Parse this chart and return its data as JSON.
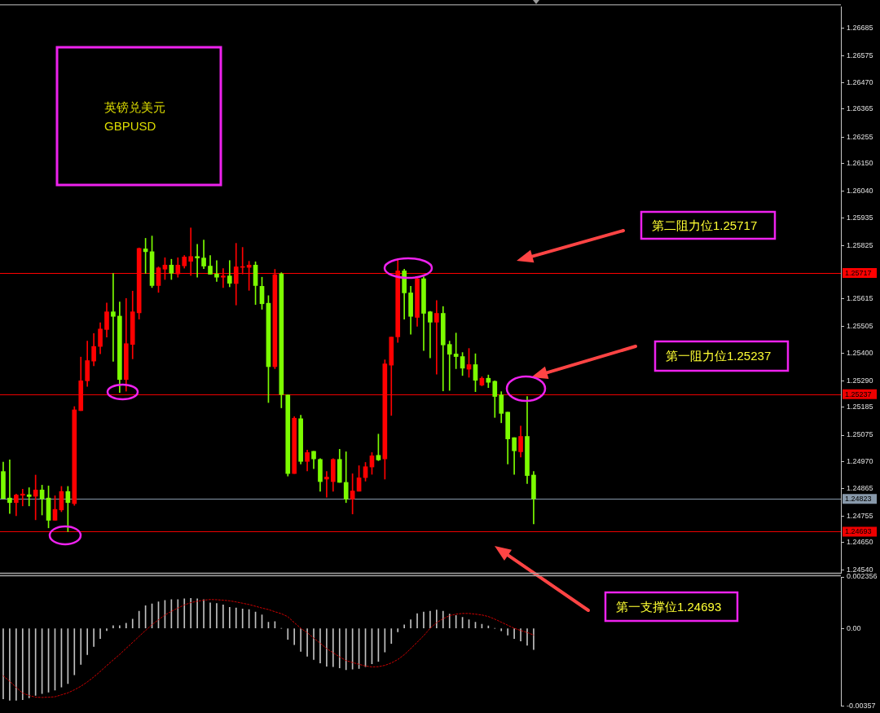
{
  "chart_data": [
    {
      "type": "candlestick",
      "title": "英镑兑美元",
      "subtitle": "GBPUSD",
      "categories": [
        null,
        null,
        null,
        null,
        null,
        null,
        null,
        null,
        null,
        null,
        null,
        null,
        null,
        null,
        null,
        null,
        null,
        null,
        null,
        null,
        null,
        null,
        null,
        null,
        null,
        null,
        null,
        null,
        null,
        null,
        null,
        null,
        null,
        null,
        null,
        null,
        null,
        null,
        null,
        null,
        null,
        null,
        null,
        null,
        null,
        null,
        null,
        null,
        null,
        null,
        null,
        null,
        null,
        null,
        null,
        null,
        null,
        null,
        null,
        null,
        null,
        null,
        null,
        null,
        null,
        null,
        null,
        null,
        null,
        null,
        null,
        null,
        null,
        null,
        null,
        null,
        null,
        null,
        null,
        null,
        null,
        null,
        null,
        null,
        null,
        null,
        null,
        null,
        null,
        null,
        null,
        null,
        null,
        null,
        null,
        null,
        null,
        null,
        null,
        null,
        null,
        null,
        null,
        null,
        null,
        null,
        null,
        null,
        null,
        null,
        null,
        null,
        null,
        null,
        null,
        null,
        null,
        null,
        null,
        null,
        null,
        null,
        null,
        null,
        null,
        null,
        null,
        null,
        null,
        null
      ],
      "ohlc": [
        [
          1.24931,
          1.24968,
          1.24824,
          1.24824
        ],
        [
          1.24826,
          1.24977,
          1.24765,
          1.24808
        ],
        [
          1.24808,
          1.24842,
          1.24756,
          1.24838
        ],
        [
          1.24837,
          1.24861,
          1.24795,
          1.24842
        ],
        [
          1.24839,
          1.24867,
          1.24795,
          1.24832
        ],
        [
          1.24833,
          1.24917,
          1.2474,
          1.24858
        ],
        [
          1.24858,
          1.24877,
          1.24759,
          1.24824
        ],
        [
          1.24826,
          1.24874,
          1.24708,
          1.24738
        ],
        [
          1.24738,
          1.24835,
          1.24738,
          1.24781
        ],
        [
          1.24779,
          1.24872,
          1.24772,
          1.24852
        ],
        [
          1.24852,
          1.24872,
          1.24693,
          1.24808
        ],
        [
          1.24804,
          1.25188,
          1.24797,
          1.25175
        ],
        [
          1.25172,
          1.25384,
          1.25172,
          1.2529
        ],
        [
          1.2529,
          1.25447,
          1.25268,
          1.2537
        ],
        [
          1.25368,
          1.25477,
          1.25349,
          1.25426
        ],
        [
          1.25426,
          1.2552,
          1.25397,
          1.25495
        ],
        [
          1.25493,
          1.25598,
          1.25463,
          1.25563
        ],
        [
          1.25563,
          1.25715,
          1.25367,
          1.25545
        ],
        [
          1.25546,
          1.25602,
          1.25244,
          1.25295
        ],
        [
          1.25295,
          1.25616,
          1.25249,
          1.25437
        ],
        [
          1.25434,
          1.25645,
          1.25377,
          1.25563
        ],
        [
          1.25559,
          1.25816,
          1.25534,
          1.25814
        ],
        [
          1.25812,
          1.25854,
          1.25715,
          1.25801
        ],
        [
          1.25801,
          1.25863,
          1.25659,
          1.25667
        ],
        [
          1.25667,
          1.25741,
          1.2564,
          1.25737
        ],
        [
          1.25732,
          1.25777,
          1.25691,
          1.25748
        ],
        [
          1.25748,
          1.25771,
          1.25691,
          1.25716
        ],
        [
          1.25713,
          1.25777,
          1.257,
          1.25748
        ],
        [
          1.25745,
          1.25786,
          1.25736,
          1.2578
        ],
        [
          1.25763,
          1.25895,
          1.25707,
          1.25782
        ],
        [
          1.25782,
          1.2583,
          1.257,
          1.25776
        ],
        [
          1.25776,
          1.25847,
          1.25734,
          1.25744
        ],
        [
          1.25744,
          1.25786,
          1.25712,
          1.25712
        ],
        [
          1.25713,
          1.25766,
          1.25683,
          1.257
        ],
        [
          1.257,
          1.25734,
          1.25659,
          1.25705
        ],
        [
          1.25705,
          1.25766,
          1.25662,
          1.25676
        ],
        [
          1.25675,
          1.25834,
          1.2559,
          1.25741
        ],
        [
          1.25739,
          1.25818,
          1.25713,
          1.25741
        ],
        [
          1.25739,
          1.25763,
          1.25648,
          1.25748
        ],
        [
          1.25748,
          1.25761,
          1.25592,
          1.25667
        ],
        [
          1.25664,
          1.257,
          1.25573,
          1.25595
        ],
        [
          1.25597,
          1.25627,
          1.25204,
          1.25346
        ],
        [
          1.25346,
          1.25731,
          1.25338,
          1.2571
        ],
        [
          1.25713,
          1.25718,
          1.25183,
          1.25236
        ],
        [
          1.25234,
          1.25234,
          1.24913,
          1.24923
        ],
        [
          1.24923,
          1.25148,
          1.24923,
          1.25142
        ],
        [
          1.2514,
          1.25154,
          1.24961,
          1.24971
        ],
        [
          1.24971,
          1.25016,
          1.24933,
          1.25006
        ],
        [
          1.25011,
          1.25011,
          1.24942,
          1.24981
        ],
        [
          1.24979,
          1.24982,
          1.24853,
          1.24891
        ],
        [
          1.24901,
          1.24931,
          1.24829,
          1.24909
        ],
        [
          1.24891,
          1.24982,
          1.24853,
          1.24979
        ],
        [
          1.24979,
          1.25019,
          1.24888,
          1.24888
        ],
        [
          1.24888,
          1.25009,
          1.24808,
          1.24822
        ],
        [
          1.24822,
          1.24922,
          1.24763,
          1.24854
        ],
        [
          1.24853,
          1.24954,
          1.24853,
          1.24906
        ],
        [
          1.24907,
          1.24967,
          1.24893,
          1.2495
        ],
        [
          1.24949,
          1.25006,
          1.2492,
          1.24993
        ],
        [
          1.24995,
          1.25079,
          1.24974,
          1.24977
        ],
        [
          1.24981,
          1.25373,
          1.24901,
          1.25357
        ],
        [
          1.25352,
          1.25463,
          1.25153,
          1.25463
        ],
        [
          1.25464,
          1.25774,
          1.25442,
          1.25725
        ],
        [
          1.25725,
          1.25732,
          1.25534,
          1.25638
        ],
        [
          1.25638,
          1.25664,
          1.25474,
          1.25545
        ],
        [
          1.25541,
          1.25702,
          1.25506,
          1.25694
        ],
        [
          1.25694,
          1.25702,
          1.2541,
          1.25557
        ],
        [
          1.25563,
          1.25565,
          1.25381,
          1.25522
        ],
        [
          1.25522,
          1.25608,
          1.25316,
          1.25557
        ],
        [
          1.25557,
          1.25584,
          1.2525,
          1.25432
        ],
        [
          1.25434,
          1.25447,
          1.25252,
          1.25395
        ],
        [
          1.25396,
          1.25479,
          1.25338,
          1.25386
        ],
        [
          1.25386,
          1.25402,
          1.25311,
          1.2534
        ],
        [
          1.25336,
          1.25418,
          1.25304,
          1.25354
        ],
        [
          1.25354,
          1.25397,
          1.25247,
          1.25292
        ],
        [
          1.25273,
          1.25306,
          1.2527,
          1.253
        ],
        [
          1.253,
          1.25313,
          1.25263,
          1.25284
        ],
        [
          1.25288,
          1.2529,
          1.25145,
          1.25228
        ],
        [
          1.25234,
          1.25247,
          1.25124,
          1.25161
        ],
        [
          1.25166,
          1.25166,
          1.24961,
          1.2506
        ],
        [
          1.25065,
          1.25065,
          1.2492,
          1.25013
        ],
        [
          1.25009,
          1.25111,
          1.24988,
          1.2507
        ],
        [
          1.2507,
          1.25228,
          1.24883,
          1.24915
        ],
        [
          1.24917,
          1.24931,
          1.24724,
          1.24823
        ],
        null,
        null,
        null,
        null,
        null,
        null,
        null,
        null,
        null,
        null,
        null,
        null,
        null,
        null,
        null,
        null,
        null,
        null,
        null,
        null,
        null,
        null,
        null,
        null,
        null,
        null,
        null,
        null,
        null,
        null,
        null,
        null,
        null,
        null,
        null,
        null,
        null,
        null,
        null,
        null,
        null,
        null,
        null,
        null,
        null,
        null,
        null
      ],
      "colors": [
        "#7cfc00",
        "#7cfc00",
        "#ff0000",
        "#ff0000",
        "#7cfc00",
        "#ff0000",
        "#7cfc00",
        "#7cfc00",
        "#ff0000",
        "#ff0000",
        "#7cfc00",
        "#ff0000",
        "#ff0000",
        "#ff0000",
        "#ff0000",
        "#ff0000",
        "#ff0000",
        "#7cfc00",
        "#7cfc00",
        "#ff0000",
        "#ff0000",
        "#ff0000",
        "#7cfc00",
        "#7cfc00",
        "#ff0000",
        "#ff0000",
        "#7cfc00",
        "#ff0000",
        "#ff0000",
        "#ff0000",
        "#7cfc00",
        "#7cfc00",
        "#7cfc00",
        "#7cfc00",
        "#ff0000",
        "#7cfc00",
        "#ff0000",
        "#ff0000",
        "#ff0000",
        "#7cfc00",
        "#7cfc00",
        "#7cfc00",
        "#ff0000",
        "#7cfc00",
        "#7cfc00",
        "#ff0000",
        "#7cfc00",
        "#ff0000",
        "#7cfc00",
        "#7cfc00",
        "#ff0000",
        "#ff0000",
        "#7cfc00",
        "#7cfc00",
        "#ff0000",
        "#ff0000",
        "#ff0000",
        "#ff0000",
        "#7cfc00",
        "#ff0000",
        "#ff0000",
        "#ff0000",
        "#7cfc00",
        "#7cfc00",
        "#ff0000",
        "#7cfc00",
        "#7cfc00",
        "#ff0000",
        "#7cfc00",
        "#7cfc00",
        "#7cfc00",
        "#7cfc00",
        "#ff0000",
        "#7cfc00",
        "#ff0000",
        "#7cfc00",
        "#7cfc00",
        "#7cfc00",
        "#7cfc00",
        "#7cfc00",
        "#ff0000",
        "#7cfc00",
        "#7cfc00",
        null,
        null,
        null,
        null,
        null,
        null,
        null,
        null,
        null,
        null,
        null,
        null,
        null,
        null,
        null,
        null,
        null,
        null,
        null,
        null,
        null,
        null,
        null,
        null,
        null,
        null,
        null,
        null,
        null,
        null,
        null,
        null,
        null,
        null,
        null,
        null,
        null,
        null,
        null,
        null,
        null,
        null,
        null,
        null,
        null,
        null,
        null
      ],
      "ylim": [
        1.2453,
        1.2677
      ],
      "yticks": [
        1.26685,
        1.26575,
        {
          "value": 1.2647,
          "label": "1.26470"
        },
        1.26365,
        1.26255,
        {
          "value": 1.2615,
          "label": "1.26150"
        },
        {
          "value": 1.2604,
          "label": "1.26040"
        },
        1.25935,
        1.25825,
        1.25615,
        1.25505,
        {
          "value": 1.254,
          "label": "1.25400"
        },
        {
          "value": 1.2529,
          "label": "1.25290"
        },
        1.25185,
        1.25075,
        {
          "value": 1.2497,
          "label": "1.24970"
        },
        1.24865,
        1.24755,
        {
          "value": 1.2465,
          "label": "1.24650"
        },
        {
          "value": 1.2454,
          "label": "1.24540"
        }
      ],
      "ref_lines": [
        {
          "axis": "y",
          "value": 1.25717,
          "label": "1.25717",
          "color": "#ff0000"
        },
        {
          "axis": "y",
          "value": 1.25237,
          "label": "1.25237",
          "color": "#ee0000"
        },
        {
          "axis": "y",
          "value": 1.24823,
          "label": "1.24823",
          "color": "#8899aa"
        },
        {
          "axis": "y",
          "value": 1.24693,
          "label": "1.24693",
          "color": "#ee0000"
        }
      ],
      "annotations": [
        "第二阻力位1.25717",
        "第一阻力位1.25237",
        "第一支撑位1.24693"
      ]
    },
    {
      "type": "bar",
      "categories": [
        null,
        null,
        null,
        null,
        null,
        null,
        null,
        null,
        null,
        null,
        null,
        null,
        null,
        null,
        null,
        null,
        null,
        null,
        null,
        null,
        null,
        null,
        null,
        null,
        null,
        null,
        null,
        null,
        null,
        null,
        null,
        null,
        null,
        null,
        null,
        null,
        null,
        null,
        null,
        null,
        null,
        null,
        null,
        null,
        null,
        null,
        null,
        null,
        null,
        null,
        null,
        null,
        null,
        null,
        null,
        null,
        null,
        null,
        null,
        null,
        null,
        null,
        null,
        null,
        null,
        null,
        null,
        null,
        null,
        null,
        null,
        null,
        null,
        null,
        null,
        null,
        null,
        null,
        null,
        null,
        null,
        null,
        null,
        null,
        null,
        null,
        null,
        null,
        null,
        null,
        null,
        null,
        null,
        null,
        null,
        null,
        null,
        null,
        null,
        null,
        null,
        null,
        null,
        null,
        null,
        null,
        null,
        null,
        null,
        null,
        null,
        null,
        null,
        null,
        null,
        null,
        null,
        null,
        null,
        null,
        null,
        null,
        null,
        null,
        null,
        null,
        null,
        null,
        null,
        null
      ],
      "series": [
        {
          "type": "bar",
          "color": "#c0c0c0",
          "values": [
            -0.00324,
            -0.0033,
            -0.0033,
            -0.00327,
            -0.00319,
            -0.00308,
            -0.00299,
            -0.00293,
            -0.00283,
            -0.00269,
            -0.00254,
            -0.00213,
            -0.00166,
            -0.00121,
            -0.00084,
            -0.00047,
            -0.00011,
            0.00012,
            0.00012,
            0.00023,
            0.00042,
            0.00078,
            0.00104,
            0.00112,
            0.00121,
            0.00128,
            0.00132,
            0.00132,
            0.00135,
            0.00137,
            0.00135,
            0.00132,
            0.00117,
            0.00114,
            0.00107,
            0.00096,
            0.00093,
            0.00089,
            0.00086,
            0.00075,
            0.00062,
            0.00028,
            0.00031,
            0,
            -0.00051,
            -0.00075,
            -0.00106,
            -0.00128,
            -0.00143,
            -0.00159,
            -0.00174,
            -0.00176,
            -0.00182,
            -0.0019,
            -0.00187,
            -0.00184,
            -0.00176,
            -0.00163,
            -0.00152,
            -0.00109,
            -0.0007,
            -0.00016,
            0.00016,
            0.00039,
            0.00067,
            0.00075,
            0.00078,
            0.00084,
            0.00078,
            0.00065,
            0.00059,
            0.0005,
            0.00039,
            0.00028,
            0.00019,
            0.00011,
            0,
            -0.00012,
            -0.00031,
            -0.00047,
            -0.00058,
            -0.00078,
            -0.00098,
            null,
            null,
            null,
            null,
            null,
            null,
            null,
            null,
            null,
            null,
            null,
            null,
            null,
            null,
            null,
            null,
            null,
            null,
            null,
            null,
            null,
            null,
            null,
            null,
            null,
            null,
            null,
            null,
            null,
            null,
            null,
            null,
            null,
            null,
            null,
            null,
            null,
            null,
            null,
            null,
            null,
            null,
            null,
            null,
            null,
            null,
            null
          ]
        },
        {
          "type": "line",
          "color": "#cc0000",
          "values": [
            -0.00218,
            -0.00243,
            -0.00271,
            -0.00297,
            -0.00308,
            -0.00316,
            -0.00317,
            -0.00316,
            -0.00314,
            -0.00305,
            -0.00296,
            -0.00282,
            -0.00266,
            -0.00246,
            -0.00223,
            -0.00198,
            -0.00171,
            -0.00145,
            -0.0012,
            -0.00092,
            -0.00065,
            -0.00037,
            -0.0001,
            0.00017,
            0.00039,
            0.00061,
            0.00078,
            0.00093,
            0.00107,
            0.00118,
            0.00124,
            0.00129,
            0.00132,
            0.00131,
            0.00129,
            0.00126,
            0.00121,
            0.00115,
            0.00109,
            0.00101,
            0.00093,
            0.00086,
            0.00076,
            0.00067,
            0.00053,
            0.00026,
            0,
            -0.0002,
            -0.00045,
            -0.00068,
            -0.00093,
            -0.00112,
            -0.00131,
            -0.00148,
            -0.00157,
            -0.00165,
            -0.00173,
            -0.00177,
            -0.00176,
            -0.0017,
            -0.00159,
            -0.00143,
            -0.00121,
            -0.00093,
            -0.00064,
            -0.00034,
            0,
            0.00026,
            0.00044,
            0.00058,
            0.00065,
            0.00068,
            0.00068,
            0.00065,
            0.00061,
            0.00054,
            0.00042,
            0.00028,
            0.00014,
            0,
            -0.0001,
            -0.00019,
            -0.00031,
            null,
            null,
            null,
            null,
            null,
            null,
            null,
            null,
            null,
            null,
            null,
            null,
            null,
            null,
            null,
            null,
            null,
            null,
            null,
            null,
            null,
            null,
            null,
            null,
            null,
            null,
            null,
            null,
            null,
            null,
            null,
            null,
            null,
            null,
            null,
            null,
            null,
            null,
            null,
            null,
            null,
            null,
            null,
            null,
            null,
            null,
            null
          ]
        }
      ],
      "line_style": "dotted",
      "ylim": [
        -0.00357,
        0.002356
      ],
      "yticks": [
        0.002356,
        {
          "value": 0,
          "label": "0.00"
        },
        -0.00357
      ]
    }
  ]
}
